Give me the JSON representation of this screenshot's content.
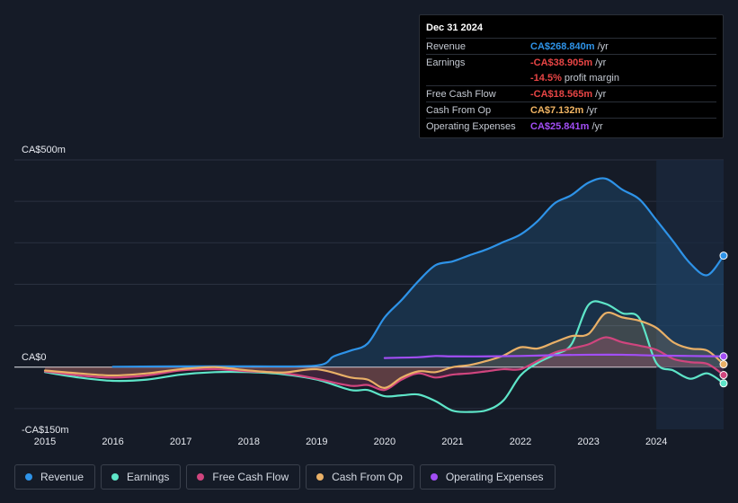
{
  "tooltip": {
    "date": "Dec 31 2024",
    "rows": [
      {
        "label": "Revenue",
        "value": "CA$268.840m",
        "unit": "/yr",
        "color": "#2e93e8"
      },
      {
        "label": "Earnings",
        "value": "-CA$38.905m",
        "unit": "/yr",
        "color": "#e84545"
      },
      {
        "label": "",
        "value": "-14.5%",
        "unit": "profit margin",
        "color": "#e84545"
      },
      {
        "label": "Free Cash Flow",
        "value": "-CA$18.565m",
        "unit": "/yr",
        "color": "#e84545"
      },
      {
        "label": "Cash From Op",
        "value": "CA$7.132m",
        "unit": "/yr",
        "color": "#f0b463"
      },
      {
        "label": "Operating Expenses",
        "value": "CA$25.841m",
        "unit": "/yr",
        "color": "#a24ef5"
      }
    ]
  },
  "legend": [
    {
      "label": "Revenue",
      "color": "#2e93e8"
    },
    {
      "label": "Earnings",
      "color": "#5ee5c8"
    },
    {
      "label": "Free Cash Flow",
      "color": "#d0457e"
    },
    {
      "label": "Cash From Op",
      "color": "#e9b067"
    },
    {
      "label": "Operating Expenses",
      "color": "#a24ef5"
    }
  ],
  "chart_data": {
    "type": "line",
    "title": "",
    "units": "CA$m",
    "y_tick_labels": [
      "CA$500m",
      "CA$0",
      "-CA$150m"
    ],
    "y_tick_values": [
      500,
      0,
      -150
    ],
    "ylim": [
      -150,
      500
    ],
    "x_tick_labels": [
      "2015",
      "2016",
      "2017",
      "2018",
      "2019",
      "2020",
      "2021",
      "2022",
      "2023",
      "2024"
    ],
    "x_tick_values": [
      2015,
      2016,
      2017,
      2018,
      2019,
      2020,
      2021,
      2022,
      2023,
      2024
    ],
    "xlim": [
      2014.55,
      2024.99
    ],
    "forecast_start": 2024.0,
    "series": [
      {
        "name": "Revenue",
        "color": "#2e93e8",
        "fill": true,
        "points": [
          [
            2016,
            1
          ],
          [
            2017,
            2
          ],
          [
            2018,
            2
          ],
          [
            2019,
            4
          ],
          [
            2019.25,
            26
          ],
          [
            2019.5,
            40
          ],
          [
            2019.75,
            57
          ],
          [
            2020,
            120
          ],
          [
            2020.25,
            162
          ],
          [
            2020.5,
            208
          ],
          [
            2020.75,
            246
          ],
          [
            2021,
            255
          ],
          [
            2021.25,
            270
          ],
          [
            2021.5,
            284
          ],
          [
            2021.75,
            302
          ],
          [
            2022,
            320
          ],
          [
            2022.25,
            352
          ],
          [
            2022.5,
            395
          ],
          [
            2022.75,
            415
          ],
          [
            2023,
            445
          ],
          [
            2023.25,
            455
          ],
          [
            2023.5,
            428
          ],
          [
            2023.75,
            405
          ],
          [
            2024,
            355
          ],
          [
            2024.25,
            303
          ],
          [
            2024.5,
            250
          ],
          [
            2024.75,
            222
          ],
          [
            2024.99,
            269
          ]
        ]
      },
      {
        "name": "Earnings",
        "color": "#5ee5c8",
        "fill": false,
        "points": [
          [
            2015,
            -12
          ],
          [
            2015.5,
            -25
          ],
          [
            2016,
            -33
          ],
          [
            2016.5,
            -30
          ],
          [
            2017,
            -18
          ],
          [
            2017.5,
            -12
          ],
          [
            2018,
            -12
          ],
          [
            2018.5,
            -17
          ],
          [
            2019,
            -30
          ],
          [
            2019.5,
            -55
          ],
          [
            2019.75,
            -55
          ],
          [
            2020,
            -70
          ],
          [
            2020.25,
            -68
          ],
          [
            2020.5,
            -66
          ],
          [
            2020.75,
            -82
          ],
          [
            2021,
            -105
          ],
          [
            2021.25,
            -108
          ],
          [
            2021.5,
            -104
          ],
          [
            2021.75,
            -80
          ],
          [
            2022,
            -20
          ],
          [
            2022.25,
            10
          ],
          [
            2022.5,
            30
          ],
          [
            2022.75,
            55
          ],
          [
            2023,
            150
          ],
          [
            2023.25,
            153
          ],
          [
            2023.5,
            130
          ],
          [
            2023.75,
            118
          ],
          [
            2024,
            10
          ],
          [
            2024.25,
            -8
          ],
          [
            2024.5,
            -28
          ],
          [
            2024.75,
            -15
          ],
          [
            2024.99,
            -39
          ]
        ]
      },
      {
        "name": "Free Cash Flow",
        "color": "#d0457e",
        "fill": true,
        "points": [
          [
            2015,
            -10
          ],
          [
            2015.5,
            -20
          ],
          [
            2016,
            -25
          ],
          [
            2016.5,
            -20
          ],
          [
            2017,
            -8
          ],
          [
            2017.5,
            -5
          ],
          [
            2018,
            -10
          ],
          [
            2018.5,
            -14
          ],
          [
            2019,
            -28
          ],
          [
            2019.5,
            -45
          ],
          [
            2019.75,
            -43
          ],
          [
            2020,
            -55
          ],
          [
            2020.25,
            -30
          ],
          [
            2020.5,
            -15
          ],
          [
            2020.75,
            -25
          ],
          [
            2021,
            -18
          ],
          [
            2021.25,
            -15
          ],
          [
            2021.5,
            -10
          ],
          [
            2021.75,
            -5
          ],
          [
            2022,
            -5
          ],
          [
            2022.25,
            15
          ],
          [
            2022.5,
            35
          ],
          [
            2022.75,
            45
          ],
          [
            2023,
            55
          ],
          [
            2023.25,
            72
          ],
          [
            2023.5,
            60
          ],
          [
            2023.75,
            52
          ],
          [
            2024,
            42
          ],
          [
            2024.25,
            20
          ],
          [
            2024.5,
            12
          ],
          [
            2024.75,
            8
          ],
          [
            2024.99,
            -19
          ]
        ]
      },
      {
        "name": "Cash From Op",
        "color": "#e9b067",
        "fill": true,
        "points": [
          [
            2015,
            -8
          ],
          [
            2015.5,
            -15
          ],
          [
            2016,
            -20
          ],
          [
            2016.5,
            -15
          ],
          [
            2017,
            -5
          ],
          [
            2017.5,
            0
          ],
          [
            2018,
            -8
          ],
          [
            2018.5,
            -13
          ],
          [
            2019,
            -5
          ],
          [
            2019.5,
            -25
          ],
          [
            2019.75,
            -30
          ],
          [
            2020,
            -50
          ],
          [
            2020.25,
            -25
          ],
          [
            2020.5,
            -10
          ],
          [
            2020.75,
            -12
          ],
          [
            2021,
            0
          ],
          [
            2021.25,
            5
          ],
          [
            2021.5,
            15
          ],
          [
            2021.75,
            28
          ],
          [
            2022,
            48
          ],
          [
            2022.25,
            45
          ],
          [
            2022.5,
            60
          ],
          [
            2022.75,
            75
          ],
          [
            2023,
            80
          ],
          [
            2023.25,
            130
          ],
          [
            2023.5,
            120
          ],
          [
            2023.75,
            112
          ],
          [
            2024,
            95
          ],
          [
            2024.25,
            60
          ],
          [
            2024.5,
            45
          ],
          [
            2024.75,
            40
          ],
          [
            2024.99,
            7
          ]
        ]
      },
      {
        "name": "Operating Expenses",
        "color": "#a24ef5",
        "fill": false,
        "points": [
          [
            2020,
            22
          ],
          [
            2020.5,
            24
          ],
          [
            2020.75,
            27
          ],
          [
            2021,
            26
          ],
          [
            2021.5,
            26
          ],
          [
            2022,
            27
          ],
          [
            2022.5,
            29
          ],
          [
            2023,
            30
          ],
          [
            2023.5,
            30
          ],
          [
            2024,
            28
          ],
          [
            2024.5,
            27
          ],
          [
            2024.99,
            26
          ]
        ]
      }
    ]
  }
}
